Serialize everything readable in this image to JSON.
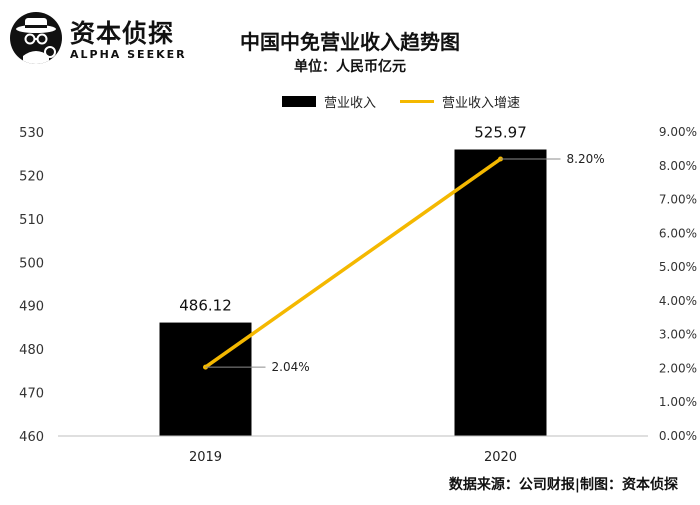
{
  "branding": {
    "title": "资本侦探",
    "subtitle": "ALPHA SEEKER"
  },
  "footer": {
    "source": "数据来源：公司财报|制图：资本侦探"
  },
  "colors": {
    "bar": "#000000",
    "line": "#f4b800",
    "axis": "#bfbfbf"
  },
  "chart_data": {
    "type": "bar",
    "title": "中国中免营业收入趋势图",
    "subtitle": "单位：人民币亿元",
    "categories": [
      "2019",
      "2020"
    ],
    "series": [
      {
        "name": "营业收入",
        "type": "bar",
        "axis": "left",
        "values": [
          486.12,
          525.97
        ],
        "labels": [
          "486.12",
          "525.97"
        ]
      },
      {
        "name": "营业收入增速",
        "type": "line",
        "axis": "right",
        "values": [
          2.04,
          8.2
        ],
        "labels": [
          "2.04%",
          "8.20%"
        ]
      }
    ],
    "ylim_left": [
      460,
      530
    ],
    "yticks_left": [
      "460",
      "470",
      "480",
      "490",
      "500",
      "510",
      "520",
      "530"
    ],
    "ylim_right": [
      0,
      9
    ],
    "yticks_right": [
      "0.00%",
      "1.00%",
      "2.00%",
      "3.00%",
      "4.00%",
      "5.00%",
      "6.00%",
      "7.00%",
      "8.00%",
      "9.00%"
    ],
    "legend_position": "top-center",
    "grid": false
  }
}
